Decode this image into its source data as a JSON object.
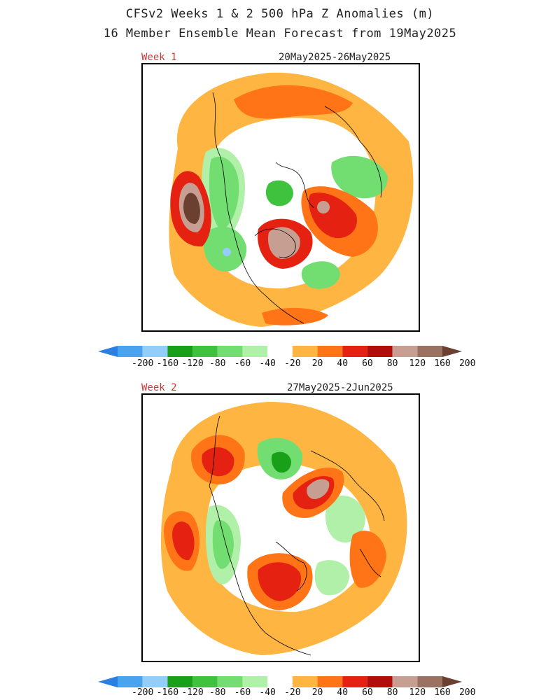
{
  "title": {
    "line1": "CFSv2 Weeks 1 & 2 500 hPa Z Anomalies (m)",
    "line2": "16 Member Ensemble Mean Forecast from 19May2025"
  },
  "panels": [
    {
      "week_label": "Week 1",
      "date_range": "20May2025-26May2025"
    },
    {
      "week_label": "Week 2",
      "date_range": "27May2025-2Jun2025"
    }
  ],
  "colorbar": {
    "tick_labels": [
      "-200",
      "-160",
      "-120",
      "-80",
      "-60",
      "-40",
      "-20",
      "20",
      "40",
      "60",
      "80",
      "120",
      "160",
      "200"
    ],
    "colors": [
      "#2a7fe0",
      "#4aa3ef",
      "#94cef8",
      "#18a018",
      "#3fc33f",
      "#72de72",
      "#b0f0a8",
      "#ffffff",
      "#ffb541",
      "#ff7417",
      "#e52212",
      "#b00e0a",
      "#c69e92",
      "#9b7262",
      "#6b4030"
    ]
  }
}
